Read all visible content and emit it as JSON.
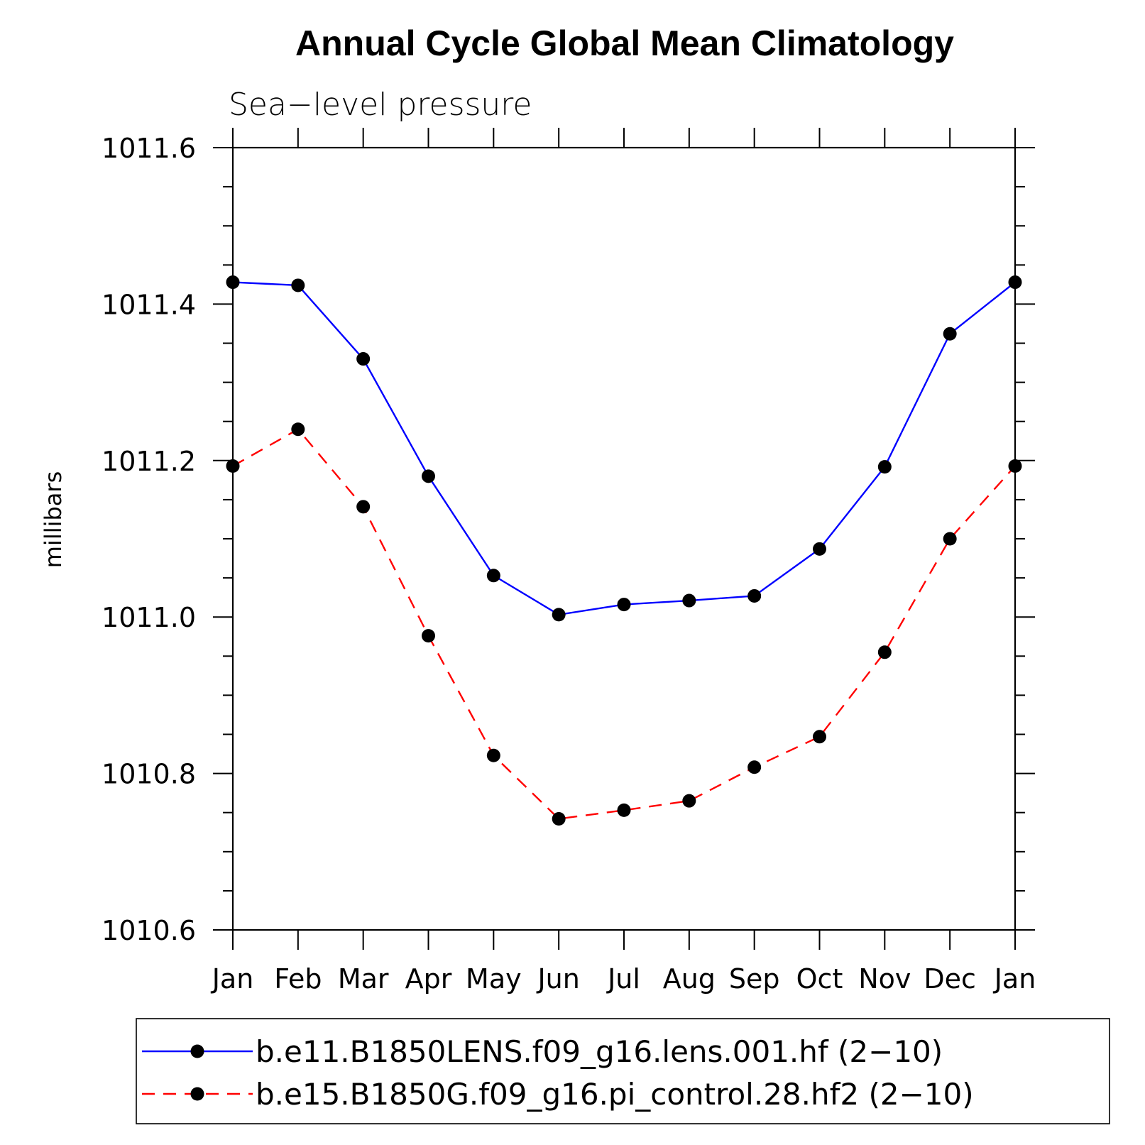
{
  "chart_data": {
    "type": "line",
    "title": "Annual Cycle Global Mean Climatology",
    "subtitle": "Sea−level pressure",
    "ylabel": "millibars",
    "xlabel": "",
    "categories": [
      "Jan",
      "Feb",
      "Mar",
      "Apr",
      "May",
      "Jun",
      "Jul",
      "Aug",
      "Sep",
      "Oct",
      "Nov",
      "Dec",
      "Jan"
    ],
    "ylim": [
      1010.6,
      1011.6
    ],
    "yticks": [
      "1010.6",
      "1010.8",
      "1011.0",
      "1011.2",
      "1011.4",
      "1011.6"
    ],
    "grid": false,
    "legend_position": "bottom",
    "series": [
      {
        "name": "b.e11.B1850LENS.f09_g16.lens.001.hf (2−10)",
        "color": "#0000ff",
        "line_style": "solid",
        "marker": "filled-circle",
        "values": [
          1011.428,
          1011.424,
          1011.33,
          1011.18,
          1011.053,
          1011.003,
          1011.016,
          1011.021,
          1011.027,
          1011.087,
          1011.192,
          1011.362,
          1011.428
        ]
      },
      {
        "name": "b.e15.B1850G.f09_g16.pi_control.28.hf2 (2−10)",
        "color": "#ff0000",
        "line_style": "dashed",
        "marker": "filled-circle",
        "values": [
          1011.193,
          1011.24,
          1011.141,
          1010.976,
          1010.823,
          1010.742,
          1010.753,
          1010.765,
          1010.808,
          1010.847,
          1010.955,
          1011.1,
          1011.193
        ]
      }
    ]
  }
}
